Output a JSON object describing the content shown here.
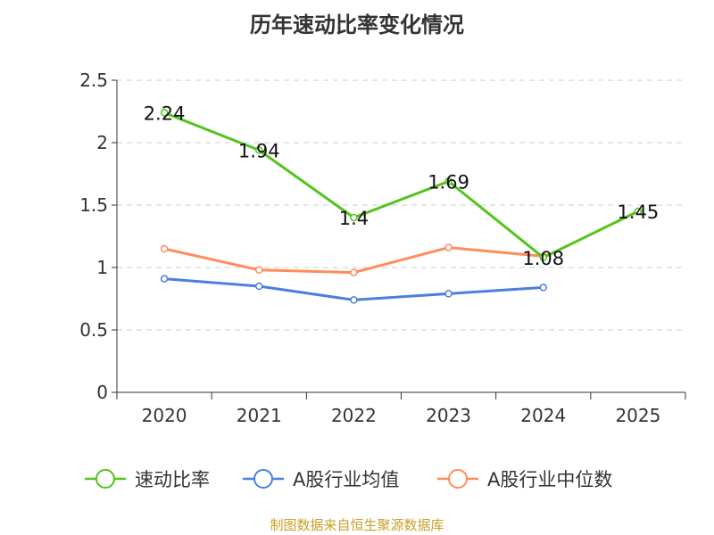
{
  "chart_data": {
    "type": "line",
    "title": "历年速动比率变化情况",
    "categories": [
      "2020",
      "2021",
      "2022",
      "2023",
      "2024",
      "2025"
    ],
    "ylim": [
      0,
      2.5
    ],
    "yticks": [
      "0",
      "0.5",
      "1",
      "1.5",
      "2",
      "2.5"
    ],
    "grid": true,
    "legend_position": "bottom",
    "series": [
      {
        "name": "速动比率",
        "color": "#52c41a",
        "values": [
          2.24,
          1.94,
          1.4,
          1.69,
          1.08,
          1.45
        ],
        "labels": [
          "2.24",
          "1.94",
          "1.4",
          "1.69",
          "1.08",
          "1.45"
        ]
      },
      {
        "name": "A股行业均值",
        "color": "#4a7fe0",
        "values": [
          0.91,
          0.85,
          0.74,
          0.79,
          0.84,
          null
        ]
      },
      {
        "name": "A股行业中位数",
        "color": "#ff8c5a",
        "values": [
          1.15,
          0.98,
          0.96,
          1.16,
          1.09,
          null
        ]
      }
    ]
  },
  "source": "制图数据来自恒生聚源数据库"
}
